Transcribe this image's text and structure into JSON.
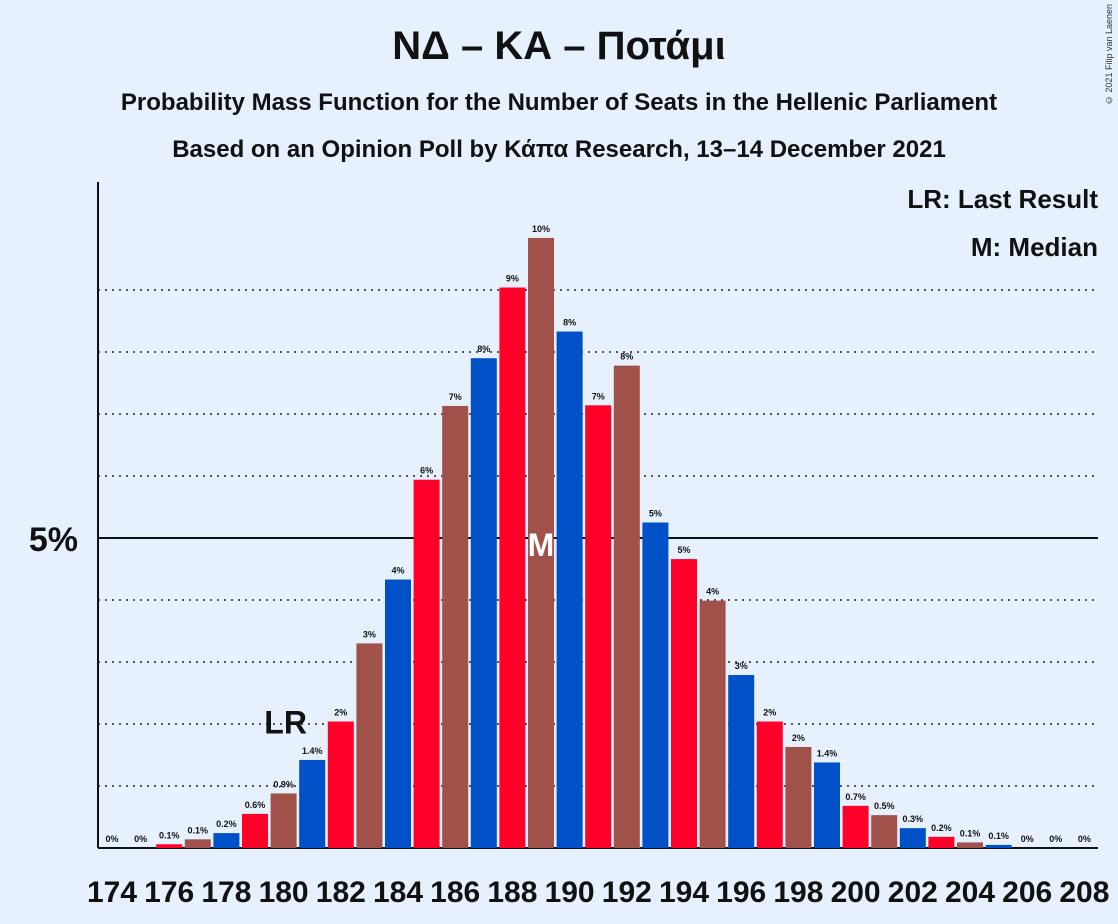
{
  "title": "ΝΔ – ΚΑ – Ποτάμι",
  "subtitle": "Probability Mass Function for the Number of Seats in the Hellenic Parliament",
  "source": "Based on an Opinion Poll by Κάπα Research, 13–14 December 2021",
  "copyright": "© 2021 Filip van Laenen",
  "legend": {
    "last_result": "LR: Last Result",
    "median": "M: Median"
  },
  "colors": {
    "blue": "#0050c8",
    "red": "#ff0028",
    "brown": "#a0524a",
    "background": "#e6f1fd"
  },
  "chart_data": {
    "type": "bar",
    "x": [
      174,
      175,
      176,
      177,
      178,
      179,
      180,
      181,
      182,
      183,
      184,
      185,
      186,
      187,
      188,
      189,
      190,
      191,
      192,
      193,
      194,
      195,
      196,
      197,
      198,
      199,
      200,
      201,
      202,
      203,
      204,
      205,
      206,
      207,
      208
    ],
    "values": [
      0,
      0,
      0.1,
      0.1,
      0.2,
      0.6,
      0.9,
      1.4,
      2,
      3,
      4,
      6,
      7,
      8,
      9,
      10,
      8,
      7,
      8,
      5,
      5,
      4,
      3,
      2,
      2,
      1.4,
      0.7,
      0.5,
      0.3,
      0.2,
      0.1,
      0.1,
      0,
      0,
      0
    ],
    "heights_estimated": [
      0,
      0,
      0.06,
      0.14,
      0.24,
      0.55,
      0.88,
      1.42,
      2.04,
      3.3,
      4.33,
      5.94,
      7.13,
      7.9,
      9.04,
      9.84,
      8.33,
      7.14,
      7.78,
      5.25,
      4.66,
      3.99,
      2.79,
      2.04,
      1.63,
      1.38,
      0.68,
      0.53,
      0.32,
      0.18,
      0.09,
      0.05,
      0,
      0,
      0
    ],
    "labels": [
      "0%",
      "0%",
      "0.1%",
      "0.1%",
      "0.2%",
      "0.6%",
      "0.9%",
      "1.4%",
      "2%",
      "3%",
      "4%",
      "6%",
      "7%",
      "8%",
      "9%",
      "10%",
      "8%",
      "7%",
      "8%",
      "5%",
      "5%",
      "4%",
      "3%",
      "2%",
      "2%",
      "1.4%",
      "0.7%",
      "0.5%",
      "0.3%",
      "0.2%",
      "0.1%",
      "0.1%",
      "0%",
      "0%",
      "0%"
    ],
    "x_tick_labels": [
      "174",
      "176",
      "178",
      "180",
      "182",
      "184",
      "186",
      "188",
      "190",
      "192",
      "194",
      "196",
      "198",
      "200",
      "202",
      "204",
      "206",
      "208"
    ],
    "y_tick_label": "5%",
    "y_tick_value": 5,
    "ylim": [
      0,
      10.7
    ],
    "last_result": 180,
    "last_result_marker": "LR",
    "median": 189,
    "median_marker": "M",
    "grid": "dotted every 1%, solid at 5%"
  }
}
